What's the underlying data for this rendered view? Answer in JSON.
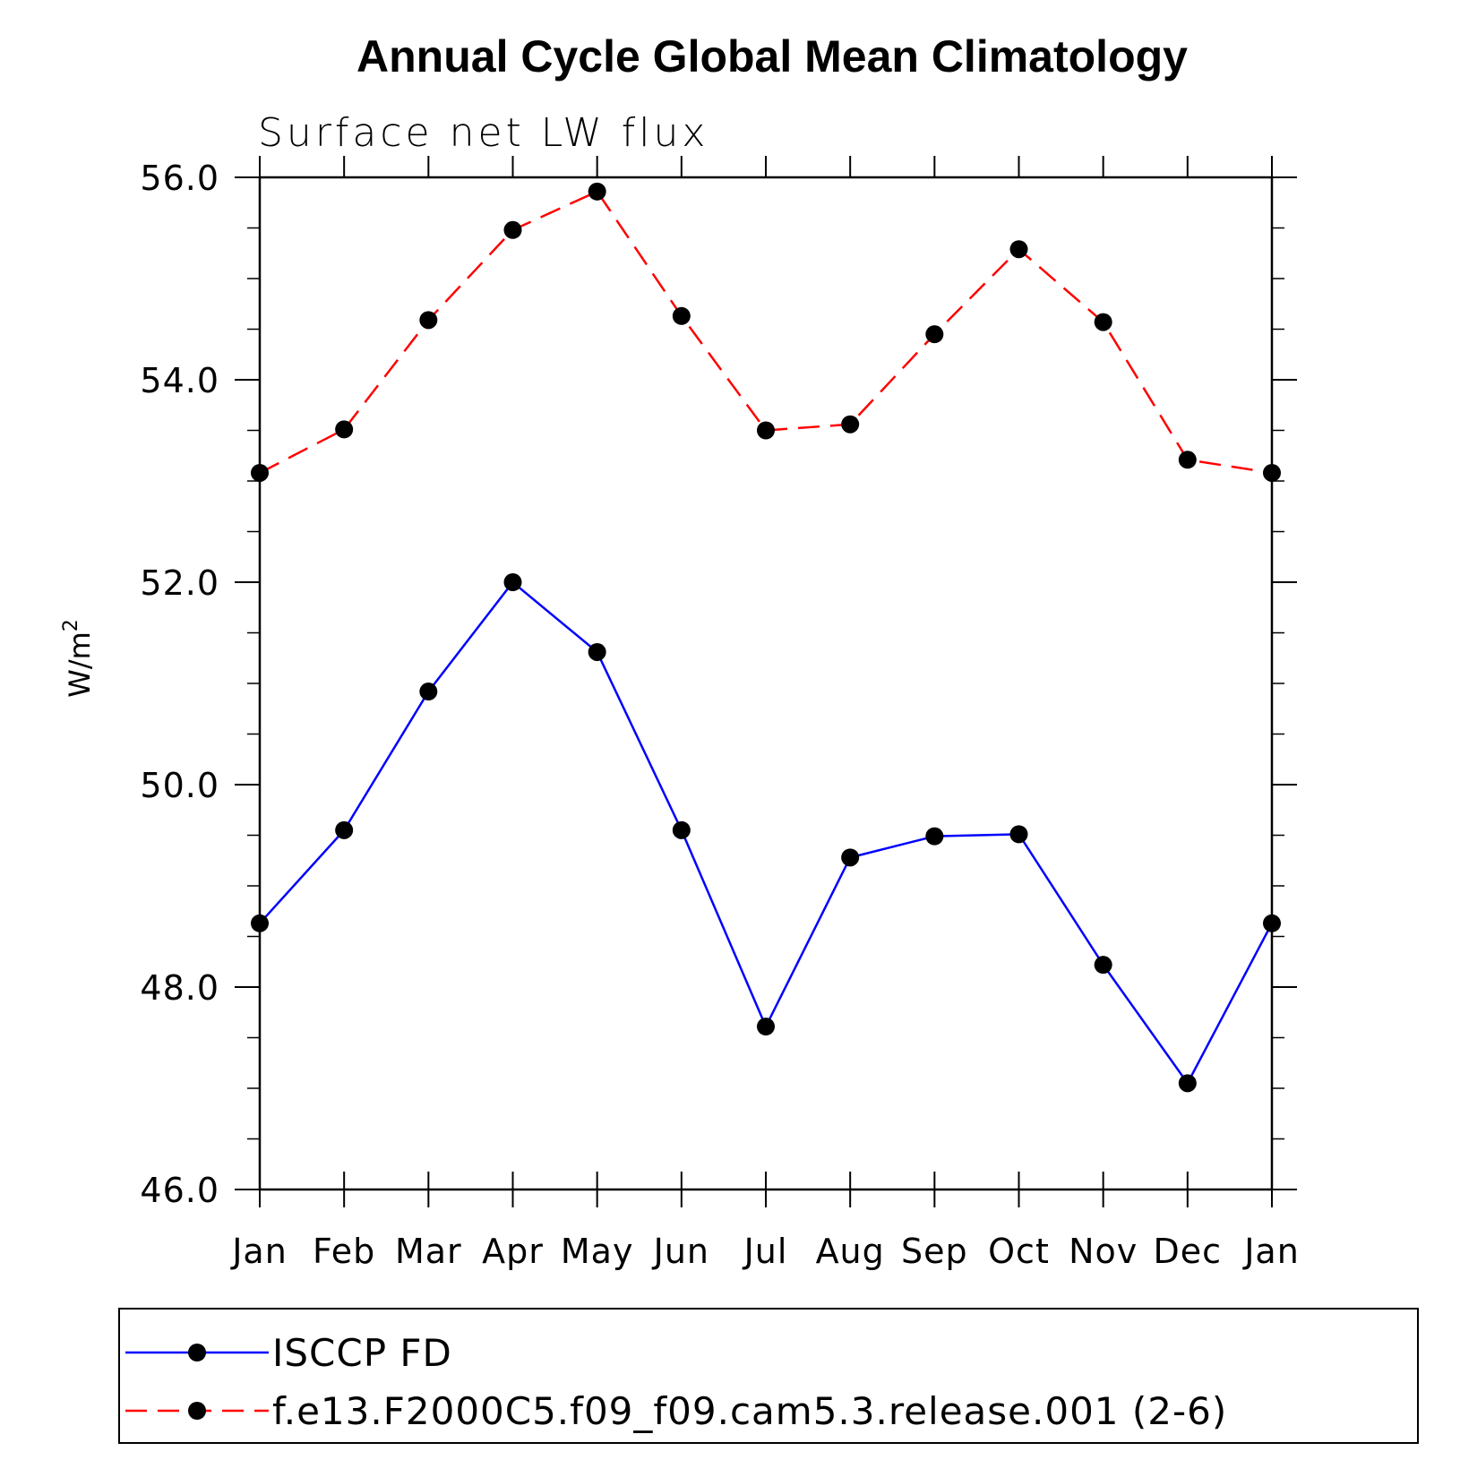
{
  "chart_data": {
    "type": "line",
    "title": "Annual Cycle Global Mean Climatology",
    "subtitle": "Surface net LW flux",
    "ylabel_main": "W/m",
    "ylabel_sup": "2",
    "xlabel": "",
    "categories": [
      "Jan",
      "Feb",
      "Mar",
      "Apr",
      "May",
      "Jun",
      "Jul",
      "Aug",
      "Sep",
      "Oct",
      "Nov",
      "Dec",
      "Jan"
    ],
    "ylim": [
      46.0,
      56.0
    ],
    "yticks": [
      "46.0",
      "48.0",
      "50.0",
      "52.0",
      "54.0",
      "56.0"
    ],
    "ytick_values": [
      46,
      48,
      50,
      52,
      54,
      56
    ],
    "minor_step": 0.5,
    "grid": false,
    "legend_placement": "bottom",
    "series": [
      {
        "name": "ISCCP FD",
        "color": "#0000ff",
        "style": "solid",
        "marker": "filled-circle",
        "values": [
          48.63,
          49.55,
          50.92,
          52.0,
          51.31,
          49.55,
          47.61,
          49.28,
          49.49,
          49.51,
          48.22,
          47.05,
          48.63
        ]
      },
      {
        "name": "f.e13.F2000C5.f09_f09.cam5.3.release.001 (2-6)",
        "color": "#ff0000",
        "style": "dashed",
        "marker": "filled-circle",
        "values": [
          53.08,
          53.51,
          54.59,
          55.48,
          55.86,
          54.63,
          53.5,
          53.56,
          54.45,
          55.29,
          54.57,
          53.21,
          53.08
        ]
      }
    ]
  }
}
